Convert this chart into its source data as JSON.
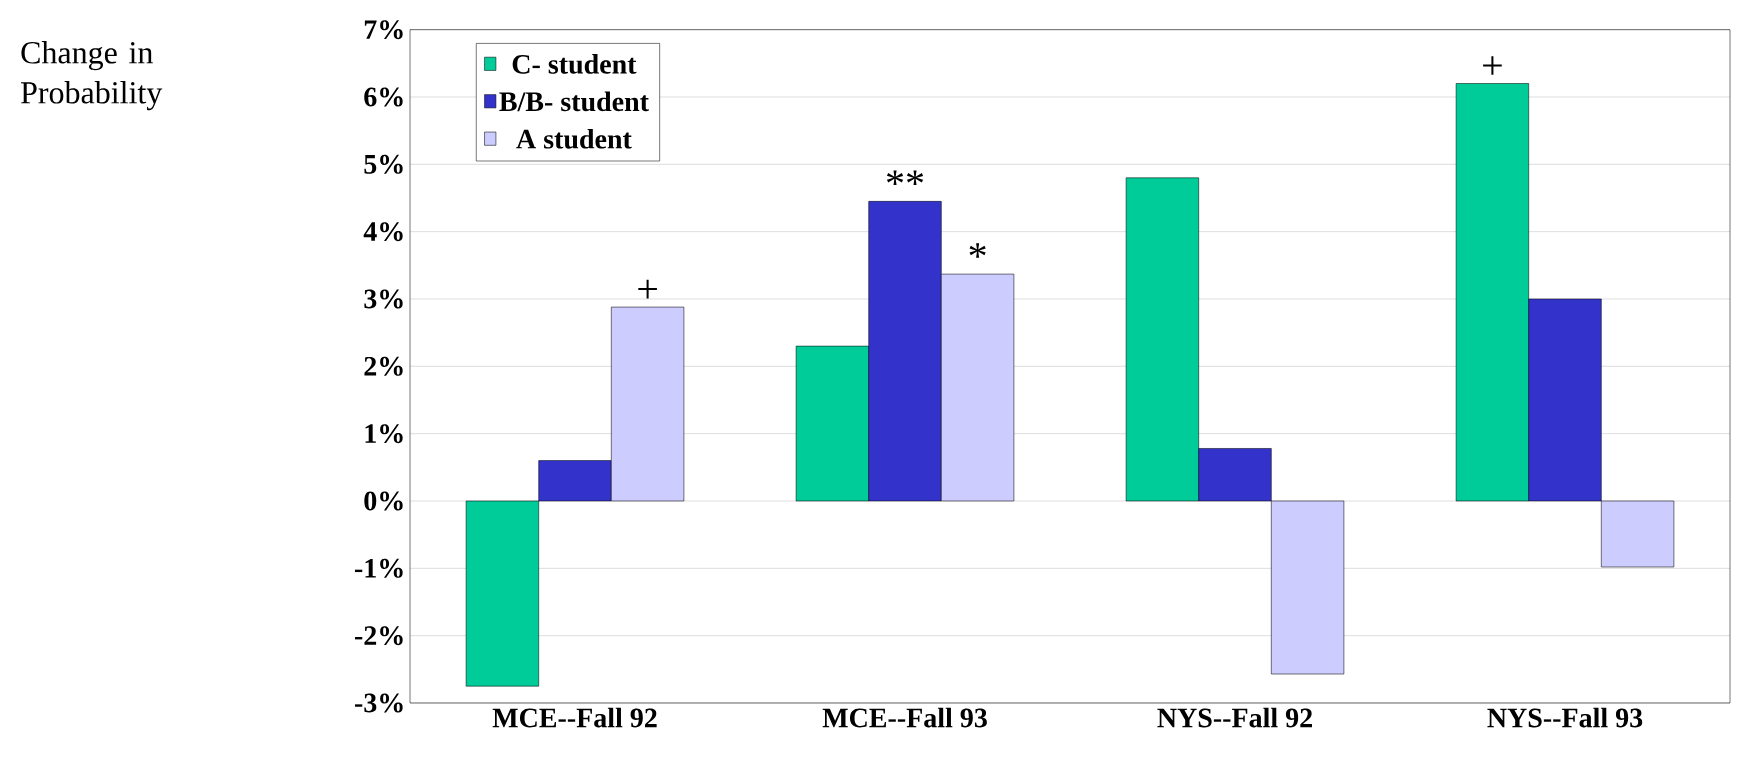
{
  "chart_data": {
    "type": "bar",
    "categories": [
      "MCE--Fall 92",
      "MCE--Fall 93",
      "NYS--Fall 92",
      "NYS--Fall 93"
    ],
    "series": [
      {
        "name": "C- student",
        "color": "#00cc99",
        "values": [
          -2.75,
          2.3,
          4.8,
          6.2
        ]
      },
      {
        "name": "B/B- student",
        "color": "#3333cc",
        "values": [
          0.6,
          4.45,
          0.78,
          3.0
        ]
      },
      {
        "name": "A student",
        "color": "#ccccff",
        "values": [
          2.88,
          3.37,
          -2.57,
          -0.98
        ]
      }
    ],
    "ylim": [
      -3,
      7
    ],
    "yticks": [
      {
        "value": -3,
        "label": "-3%"
      },
      {
        "value": -2,
        "label": "-2%"
      },
      {
        "value": -1,
        "label": "-1%"
      },
      {
        "value": 0,
        "label": "0%"
      },
      {
        "value": 1,
        "label": "1%"
      },
      {
        "value": 2,
        "label": "2%"
      },
      {
        "value": 3,
        "label": "3%"
      },
      {
        "value": 4,
        "label": "4%"
      },
      {
        "value": 5,
        "label": "5%"
      },
      {
        "value": 6,
        "label": "6%"
      },
      {
        "value": 7,
        "label": "7%"
      }
    ],
    "grid": "y",
    "legend": "top left",
    "annotations": [
      "Change in Probability",
      "+",
      "**",
      "*",
      "+"
    ]
  }
}
